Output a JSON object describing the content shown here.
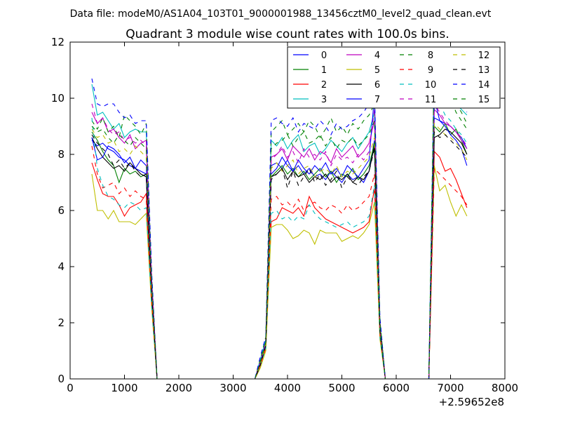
{
  "figure": {
    "suptitle": "Data file: modeM0/AS1A04_103T01_9000001988_13456cztM0_level2_quad_clean.evt"
  },
  "chart_data": {
    "type": "line",
    "title": "Quadrant 3 module wise count rates with 100.0s bins.",
    "xlabel": "",
    "ylabel": "",
    "x_offset_label": "+2.59652e8",
    "xlim": [
      0,
      8000
    ],
    "ylim": [
      0,
      12
    ],
    "xticks": [
      0,
      1000,
      2000,
      3000,
      4000,
      5000,
      6000,
      7000,
      8000
    ],
    "yticks": [
      0,
      2,
      4,
      6,
      8,
      10,
      12
    ],
    "grid": false,
    "legend": {
      "location": "upper-right",
      "columns": 4
    },
    "x": [
      400,
      500,
      600,
      700,
      800,
      900,
      1000,
      1100,
      1200,
      1300,
      1400,
      1500,
      1600,
      1700,
      1800,
      1900,
      2000,
      2100,
      2200,
      2300,
      2400,
      2500,
      2600,
      2700,
      2800,
      2900,
      3000,
      3100,
      3200,
      3300,
      3400,
      3500,
      3600,
      3700,
      3800,
      3900,
      4000,
      4100,
      4200,
      4300,
      4400,
      4500,
      4600,
      4700,
      4800,
      4900,
      5000,
      5100,
      5200,
      5300,
      5400,
      5500,
      5600,
      5700,
      5800,
      5900,
      6000,
      6100,
      6200,
      6300,
      6400,
      6500,
      6600,
      6700,
      6800,
      6900,
      7000,
      7100,
      7200,
      7300
    ],
    "series": [
      {
        "name": "0",
        "color": "#0000ff",
        "dash": "solid",
        "values": [
          8.5,
          8.3,
          8.4,
          8.2,
          8.1,
          7.9,
          7.8,
          7.6,
          7.5,
          7.4,
          7.3,
          3.0,
          0,
          0,
          0,
          0,
          0,
          0,
          0,
          0,
          0,
          0,
          0,
          0,
          0,
          0,
          0,
          0,
          0,
          0,
          0,
          0.5,
          1.2,
          7.6,
          7.7,
          7.5,
          7.8,
          7.4,
          7.6,
          7.3,
          7.5,
          7.2,
          7.3,
          7.1,
          7.4,
          7.2,
          7.0,
          7.3,
          7.1,
          7.2,
          7.0,
          7.4,
          8.5,
          1.8,
          0,
          0,
          0,
          0,
          0,
          0,
          0,
          0,
          0,
          9.3,
          9.2,
          9.1,
          9.0,
          8.8,
          8.6,
          8.2
        ]
      },
      {
        "name": "1",
        "color": "#008000",
        "dash": "solid",
        "values": [
          8.8,
          8.5,
          8.1,
          7.8,
          7.6,
          7.0,
          7.5,
          7.3,
          7.4,
          7.2,
          7.3,
          3.1,
          0,
          0,
          0,
          0,
          0,
          0,
          0,
          0,
          0,
          0,
          0,
          0,
          0,
          0,
          0,
          0,
          0,
          0,
          0,
          0.6,
          1.3,
          7.2,
          7.4,
          7.6,
          7.3,
          7.5,
          7.2,
          7.4,
          7.1,
          7.3,
          7.5,
          7.2,
          7.4,
          7.0,
          7.3,
          7.2,
          7.5,
          7.1,
          7.3,
          7.6,
          8.4,
          1.7,
          0,
          0,
          0,
          0,
          0,
          0,
          0,
          0,
          0,
          9.0,
          8.8,
          9.1,
          8.7,
          8.9,
          8.5,
          8.0
        ]
      },
      {
        "name": "2",
        "color": "#ff0000",
        "dash": "solid",
        "values": [
          7.7,
          7.1,
          6.6,
          6.5,
          6.5,
          6.2,
          5.8,
          6.1,
          6.2,
          6.3,
          6.6,
          2.7,
          0,
          0,
          0,
          0,
          0,
          0,
          0,
          0,
          0,
          0,
          0,
          0,
          0,
          0,
          0,
          0,
          0,
          0,
          0,
          0.5,
          1.1,
          5.6,
          5.7,
          6.1,
          6.0,
          5.9,
          6.1,
          5.8,
          6.5,
          6.1,
          5.9,
          5.7,
          5.6,
          5.5,
          5.4,
          5.3,
          5.2,
          5.3,
          5.4,
          5.6,
          6.8,
          1.6,
          0,
          0,
          0,
          0,
          0,
          0,
          0,
          0,
          0,
          8.1,
          7.9,
          7.4,
          7.5,
          7.1,
          6.6,
          6.1
        ]
      },
      {
        "name": "3",
        "color": "#00bfbf",
        "dash": "solid",
        "values": [
          10.5,
          9.4,
          9.5,
          9.2,
          8.9,
          9.1,
          8.6,
          8.8,
          8.9,
          8.8,
          8.8,
          3.6,
          0,
          0,
          0,
          0,
          0,
          0,
          0,
          0,
          0,
          0,
          0,
          0,
          0,
          0,
          0,
          0,
          0,
          0,
          0,
          0.7,
          1.4,
          8.5,
          8.3,
          8.6,
          8.2,
          8.5,
          8.7,
          8.1,
          8.3,
          8.4,
          8.0,
          8.2,
          8.5,
          8.3,
          8.1,
          8.4,
          8.6,
          8.2,
          8.5,
          8.8,
          9.5,
          2.0,
          0,
          0,
          0,
          0,
          0,
          0,
          0,
          0,
          0,
          11.2,
          10.6,
          10.3,
          10.1,
          9.8,
          9.6,
          9.4
        ]
      },
      {
        "name": "4",
        "color": "#bf00bf",
        "dash": "solid",
        "values": [
          9.5,
          9.1,
          9.3,
          8.8,
          8.9,
          8.6,
          8.4,
          8.7,
          8.2,
          8.4,
          8.5,
          3.5,
          0,
          0,
          0,
          0,
          0,
          0,
          0,
          0,
          0,
          0,
          0,
          0,
          0,
          0,
          0,
          0,
          0,
          0,
          0,
          0.6,
          1.3,
          7.9,
          8.0,
          8.2,
          7.8,
          8.3,
          8.1,
          7.9,
          8.2,
          7.8,
          8.1,
          8.0,
          7.7,
          8.2,
          7.9,
          8.1,
          8.3,
          7.9,
          8.1,
          8.4,
          9.2,
          1.9,
          0,
          0,
          0,
          0,
          0,
          0,
          0,
          0,
          0,
          9.6,
          9.4,
          9.1,
          9.0,
          8.8,
          8.5,
          8.2
        ]
      },
      {
        "name": "5",
        "color": "#bfbf00",
        "dash": "solid",
        "values": [
          7.3,
          6.0,
          6.0,
          5.7,
          6.0,
          5.6,
          5.6,
          5.6,
          5.5,
          5.7,
          5.9,
          2.5,
          0,
          0,
          0,
          0,
          0,
          0,
          0,
          0,
          0,
          0,
          0,
          0,
          0,
          0,
          0,
          0,
          0,
          0,
          0,
          0.4,
          1.0,
          5.4,
          5.5,
          5.5,
          5.3,
          5.0,
          5.1,
          5.3,
          5.2,
          4.8,
          5.3,
          5.2,
          5.2,
          5.2,
          4.9,
          5.0,
          5.1,
          5.0,
          5.2,
          5.5,
          6.3,
          1.4,
          0,
          0,
          0,
          0,
          0,
          0,
          0,
          0,
          0,
          7.6,
          6.7,
          6.9,
          6.3,
          5.8,
          6.2,
          5.8
        ]
      },
      {
        "name": "6",
        "color": "#000000",
        "dash": "solid",
        "values": [
          8.6,
          8.2,
          7.9,
          7.7,
          7.5,
          7.6,
          7.4,
          7.7,
          7.5,
          7.3,
          7.2,
          3.0,
          0,
          0,
          0,
          0,
          0,
          0,
          0,
          0,
          0,
          0,
          0,
          0,
          0,
          0,
          0,
          0,
          0,
          0,
          0,
          0.5,
          1.2,
          7.2,
          7.3,
          7.5,
          7.1,
          7.4,
          7.2,
          7.3,
          7.0,
          7.2,
          7.1,
          7.3,
          7.0,
          7.2,
          7.1,
          7.3,
          7.0,
          7.2,
          7.1,
          7.4,
          8.3,
          1.7,
          0,
          0,
          0,
          0,
          0,
          0,
          0,
          0,
          0,
          8.6,
          8.7,
          8.9,
          8.8,
          8.6,
          8.4,
          8.0
        ]
      },
      {
        "name": "7",
        "color": "#0000ff",
        "dash": "solid",
        "values": [
          8.6,
          7.8,
          7.9,
          8.3,
          8.2,
          8.0,
          7.7,
          7.9,
          7.5,
          7.8,
          7.6,
          3.1,
          0,
          0,
          0,
          0,
          0,
          0,
          0,
          0,
          0,
          0,
          0,
          0,
          0,
          0,
          0,
          0,
          0,
          0,
          0,
          0.6,
          1.2,
          7.3,
          7.5,
          7.9,
          7.6,
          7.4,
          7.8,
          7.5,
          7.3,
          7.6,
          7.4,
          7.7,
          7.3,
          7.5,
          7.2,
          7.6,
          7.4,
          7.2,
          7.5,
          7.8,
          10.1,
          1.8,
          0,
          0,
          0,
          0,
          0,
          0,
          0,
          0,
          0,
          10.0,
          9.2,
          9.0,
          8.7,
          8.5,
          8.2,
          7.6
        ]
      },
      {
        "name": "8",
        "color": "#008000",
        "dash": "dashed",
        "values": [
          9.2,
          8.9,
          9.3,
          8.8,
          9.0,
          8.6,
          9.4,
          9.2,
          9.0,
          8.7,
          9.1,
          3.7,
          0,
          0,
          0,
          0,
          0,
          0,
          0,
          0,
          0,
          0,
          0,
          0,
          0,
          0,
          0,
          0,
          0,
          0,
          0,
          0.7,
          1.5,
          8.8,
          9.0,
          9.2,
          8.7,
          8.9,
          9.1,
          8.8,
          9.2,
          9.0,
          8.6,
          8.9,
          9.3,
          8.8,
          9.0,
          8.7,
          9.1,
          8.9,
          9.2,
          9.4,
          9.8,
          2.1,
          0,
          0,
          0,
          0,
          0,
          0,
          0,
          0,
          0,
          11.3,
          10.8,
          10.2,
          10.0,
          9.8,
          9.5,
          9.1
        ]
      },
      {
        "name": "9",
        "color": "#ff0000",
        "dash": "dashed",
        "values": [
          8.3,
          7.3,
          6.8,
          6.9,
          7.0,
          6.6,
          6.8,
          6.5,
          6.7,
          6.5,
          6.4,
          2.8,
          0,
          0,
          0,
          0,
          0,
          0,
          0,
          0,
          0,
          0,
          0,
          0,
          0,
          0,
          0,
          0,
          0,
          0,
          0,
          0.5,
          1.1,
          6.4,
          6.5,
          6.2,
          6.3,
          6.1,
          6.4,
          6.0,
          6.2,
          6.3,
          6.1,
          6.0,
          6.2,
          6.1,
          5.9,
          6.2,
          6.0,
          6.1,
          6.3,
          6.5,
          7.3,
          1.6,
          0,
          0,
          0,
          0,
          0,
          0,
          0,
          0,
          0,
          7.5,
          7.3,
          7.1,
          6.9,
          6.7,
          6.5,
          6.2
        ]
      },
      {
        "name": "10",
        "color": "#00bfbf",
        "dash": "dashed",
        "values": [
          9.3,
          7.5,
          6.9,
          6.5,
          6.4,
          6.2,
          6.1,
          6.3,
          6.2,
          6.0,
          6.1,
          2.6,
          0,
          0,
          0,
          0,
          0,
          0,
          0,
          0,
          0,
          0,
          0,
          0,
          0,
          0,
          0,
          0,
          0,
          0,
          0,
          0.5,
          1.1,
          5.9,
          6.0,
          5.7,
          5.8,
          5.6,
          5.8,
          5.7,
          6.2,
          5.9,
          5.7,
          5.6,
          5.5,
          5.4,
          5.5,
          5.6,
          5.4,
          5.5,
          5.6,
          5.8,
          6.9,
          1.5,
          0,
          0,
          0,
          0,
          0,
          0,
          0,
          0,
          0,
          10.7,
          9.8,
          9.4,
          9.2,
          8.9,
          8.7,
          8.4
        ]
      },
      {
        "name": "11",
        "color": "#bf00bf",
        "dash": "dashed",
        "values": [
          9.8,
          9.1,
          9.3,
          8.9,
          8.7,
          8.8,
          8.5,
          8.6,
          8.4,
          8.5,
          8.3,
          3.5,
          0,
          0,
          0,
          0,
          0,
          0,
          0,
          0,
          0,
          0,
          0,
          0,
          0,
          0,
          0,
          0,
          0,
          0,
          0,
          0.6,
          1.3,
          7.8,
          8.0,
          8.3,
          7.9,
          8.1,
          7.7,
          8.2,
          7.9,
          8.0,
          7.8,
          8.1,
          7.6,
          8.0,
          7.8,
          7.9,
          7.7,
          8.0,
          7.8,
          8.1,
          9.6,
          1.8,
          0,
          0,
          0,
          0,
          0,
          0,
          0,
          0,
          0,
          9.8,
          9.5,
          9.2,
          9.0,
          8.8,
          8.6,
          8.3
        ]
      },
      {
        "name": "12",
        "color": "#bfbf00",
        "dash": "dashed",
        "values": [
          8.9,
          8.6,
          8.7,
          8.4,
          8.5,
          8.1,
          8.2,
          8.0,
          8.3,
          8.1,
          7.9,
          3.3,
          0,
          0,
          0,
          0,
          0,
          0,
          0,
          0,
          0,
          0,
          0,
          0,
          0,
          0,
          0,
          0,
          0,
          0,
          0,
          0.6,
          1.2,
          7.5,
          7.7,
          7.4,
          7.6,
          7.8,
          7.3,
          7.5,
          7.6,
          7.2,
          7.4,
          7.5,
          7.3,
          7.6,
          7.2,
          7.4,
          7.3,
          7.5,
          7.7,
          7.9,
          8.6,
          1.8,
          0,
          0,
          0,
          0,
          0,
          0,
          0,
          0,
          0,
          9.1,
          8.9,
          8.7,
          8.6,
          8.4,
          8.2,
          7.8
        ]
      },
      {
        "name": "13",
        "color": "#000000",
        "dash": "dashed",
        "values": [
          8.7,
          8.4,
          8.2,
          8.0,
          7.6,
          7.8,
          7.5,
          7.7,
          7.4,
          7.2,
          7.3,
          3.0,
          0,
          0,
          0,
          0,
          0,
          0,
          0,
          0,
          0,
          0,
          0,
          0,
          0,
          0,
          0,
          0,
          0,
          0,
          0,
          0.5,
          1.2,
          7.1,
          7.3,
          7.5,
          6.8,
          7.4,
          6.9,
          7.2,
          7.5,
          7.0,
          7.3,
          6.9,
          7.1,
          7.4,
          6.8,
          7.2,
          7.0,
          6.9,
          7.2,
          7.4,
          8.2,
          1.7,
          0,
          0,
          0,
          0,
          0,
          0,
          0,
          0,
          0,
          8.8,
          8.6,
          8.7,
          8.5,
          8.3,
          8.1,
          7.9
        ]
      },
      {
        "name": "14",
        "color": "#0000ff",
        "dash": "dashed",
        "values": [
          10.7,
          9.8,
          9.7,
          9.8,
          9.8,
          9.5,
          9.3,
          9.4,
          9.1,
          9.2,
          9.2,
          3.8,
          0,
          0,
          0,
          0,
          0,
          0,
          0,
          0,
          0,
          0,
          0,
          0,
          0,
          0,
          0,
          0,
          0,
          0,
          0,
          0.8,
          1.5,
          9.2,
          9.3,
          9.1,
          9.0,
          9.3,
          8.8,
          9.1,
          9.0,
          8.9,
          9.2,
          9.0,
          8.7,
          9.1,
          8.9,
          9.0,
          9.2,
          9.3,
          9.5,
          9.8,
          10.3,
          2.2,
          0,
          0,
          0,
          0,
          0,
          0,
          0,
          0,
          0,
          11.0,
          10.9,
          10.5,
          10.2,
          10.3,
          9.8,
          9.5
        ]
      },
      {
        "name": "15",
        "color": "#008000",
        "dash": "dashed",
        "values": [
          9.0,
          8.8,
          8.9,
          8.6,
          8.4,
          8.7,
          8.5,
          8.3,
          8.6,
          8.4,
          8.2,
          3.4,
          0,
          0,
          0,
          0,
          0,
          0,
          0,
          0,
          0,
          0,
          0,
          0,
          0,
          0,
          0,
          0,
          0,
          0,
          0,
          0.6,
          1.3,
          8.2,
          8.4,
          8.5,
          8.7,
          8.3,
          8.6,
          8.8,
          8.4,
          8.5,
          8.7,
          8.3,
          8.6,
          8.2,
          8.5,
          8.4,
          8.6,
          8.3,
          8.5,
          8.7,
          9.2,
          1.9,
          0,
          0,
          0,
          0,
          0,
          0,
          0,
          0,
          0,
          11.4,
          10.7,
          10.3,
          10.0,
          9.5,
          9.2,
          8.9
        ]
      }
    ]
  }
}
